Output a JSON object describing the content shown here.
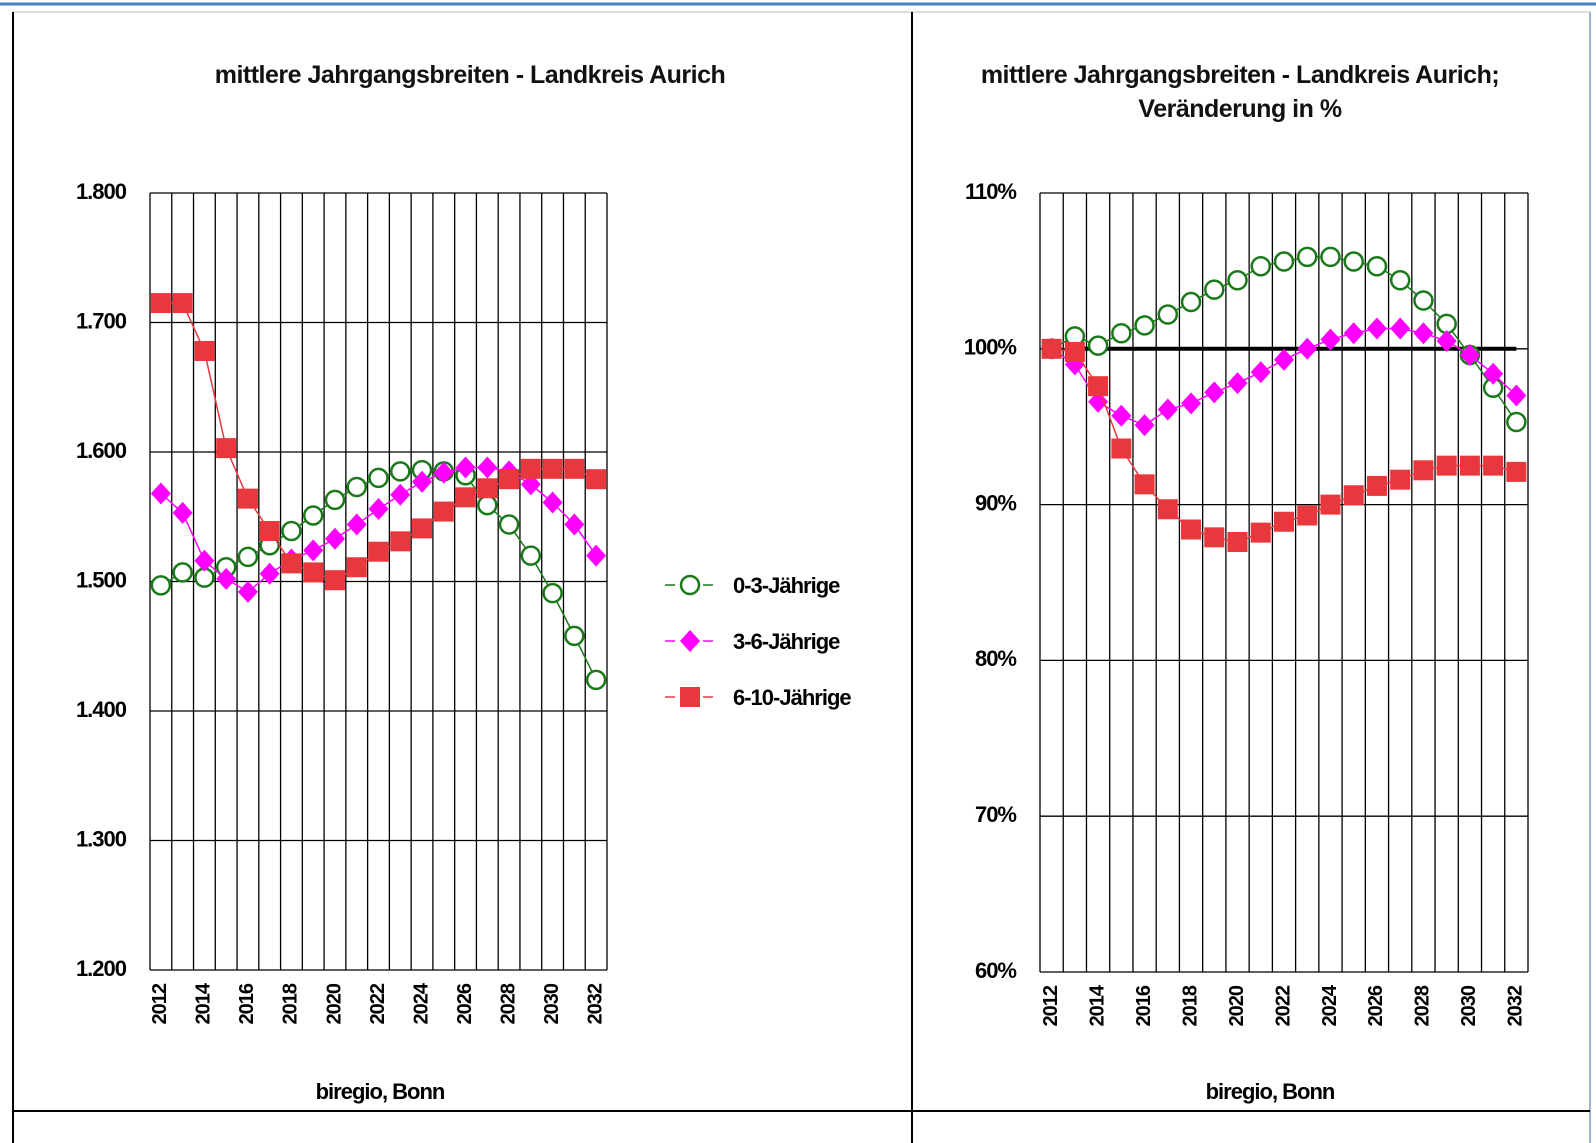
{
  "chart_data": [
    {
      "type": "line",
      "title": "mittlere Jahrgangsbreiten - Landkreis Aurich",
      "source": "biregio, Bonn",
      "categories": [
        "2012",
        null,
        "2014",
        null,
        "2016",
        null,
        "2018",
        null,
        "2020",
        null,
        "2022",
        null,
        "2024",
        null,
        "2026",
        null,
        "2028",
        null,
        "2030",
        null,
        "2032"
      ],
      "series": [
        {
          "name": "0-3-Jährige",
          "color": "#1a7a1a",
          "marker": "circle-open",
          "values": [
            1497,
            1507,
            1503,
            1511,
            1519,
            1528,
            1539,
            1551,
            1563,
            1573,
            1580,
            1585,
            1586,
            1585,
            1582,
            1559,
            1544,
            1520,
            1491,
            1458,
            1424
          ]
        },
        {
          "name": "3-6-Jährige",
          "color": "#ff00ff",
          "marker": "diamond",
          "values": [
            1568,
            1553,
            1516,
            1502,
            1492,
            1506,
            1517,
            1524,
            1533,
            1544,
            1556,
            1567,
            1577,
            1584,
            1588,
            1588,
            1585,
            1575,
            1561,
            1544,
            1520
          ]
        },
        {
          "name": "6-10-Jährige",
          "color": "#e8383d",
          "marker": "square",
          "values": [
            1715,
            1715,
            1678,
            1603,
            1564,
            1539,
            1514,
            1507,
            1501,
            1511,
            1523,
            1531,
            1541,
            1554,
            1565,
            1572,
            1579,
            1587,
            1587,
            1587,
            1579
          ]
        }
      ],
      "ylim": [
        1200,
        1800
      ],
      "yticks": [
        {
          "value": 1200,
          "label": "1.200"
        },
        {
          "value": 1300,
          "label": "1.300"
        },
        {
          "value": 1400,
          "label": "1.400"
        },
        {
          "value": 1500,
          "label": "1.500"
        },
        {
          "value": 1600,
          "label": "1.600"
        },
        {
          "value": 1700,
          "label": "1.700"
        },
        {
          "value": 1800,
          "label": "1.800"
        }
      ],
      "grid": true,
      "legend": "right"
    },
    {
      "type": "line",
      "title": "mittlere Jahrgangsbreiten - Landkreis Aurich; Veränderung in %",
      "source": "biregio, Bonn",
      "categories": [
        "2012",
        null,
        "2014",
        null,
        "2016",
        null,
        "2018",
        null,
        "2020",
        null,
        "2022",
        null,
        "2024",
        null,
        "2026",
        null,
        "2028",
        null,
        "2030",
        null,
        "2032"
      ],
      "series": [
        {
          "color": "#000000",
          "marker": "none",
          "values": [
            null,
            100,
            100,
            100,
            100,
            100,
            100,
            100,
            100,
            100,
            100,
            100,
            100,
            100,
            100,
            100,
            100,
            100,
            100,
            100,
            100
          ]
        },
        {
          "color": "#1a7a1a",
          "marker": "circle-open",
          "values": [
            100,
            100.8,
            100.2,
            101.0,
            101.5,
            102.2,
            103.0,
            103.8,
            104.4,
            105.3,
            105.6,
            105.9,
            105.9,
            105.6,
            105.3,
            104.4,
            103.1,
            101.6,
            99.6,
            97.5,
            95.3
          ]
        },
        {
          "color": "#ff00ff",
          "marker": "diamond",
          "values": [
            100,
            99.0,
            96.6,
            95.7,
            95.1,
            96.1,
            96.5,
            97.2,
            97.8,
            98.5,
            99.3,
            100.0,
            100.6,
            101.0,
            101.3,
            101.3,
            101.0,
            100.5,
            99.6,
            98.4,
            97.0
          ]
        },
        {
          "color": "#e8383d",
          "marker": "square",
          "values": [
            100,
            99.8,
            97.6,
            93.6,
            91.3,
            89.7,
            88.4,
            87.9,
            87.6,
            88.2,
            88.9,
            89.3,
            90.0,
            90.6,
            91.2,
            91.6,
            92.2,
            92.5,
            92.5,
            92.5,
            92.1
          ]
        }
      ],
      "ylim": [
        60,
        110
      ],
      "yticks": [
        {
          "value": 60,
          "label": "60%"
        },
        {
          "value": 70,
          "label": "70%"
        },
        {
          "value": 80,
          "label": "80%"
        },
        {
          "value": 90,
          "label": "90%"
        },
        {
          "value": 100,
          "label": "100%"
        },
        {
          "value": 110,
          "label": "110%"
        }
      ],
      "grid": true
    }
  ]
}
